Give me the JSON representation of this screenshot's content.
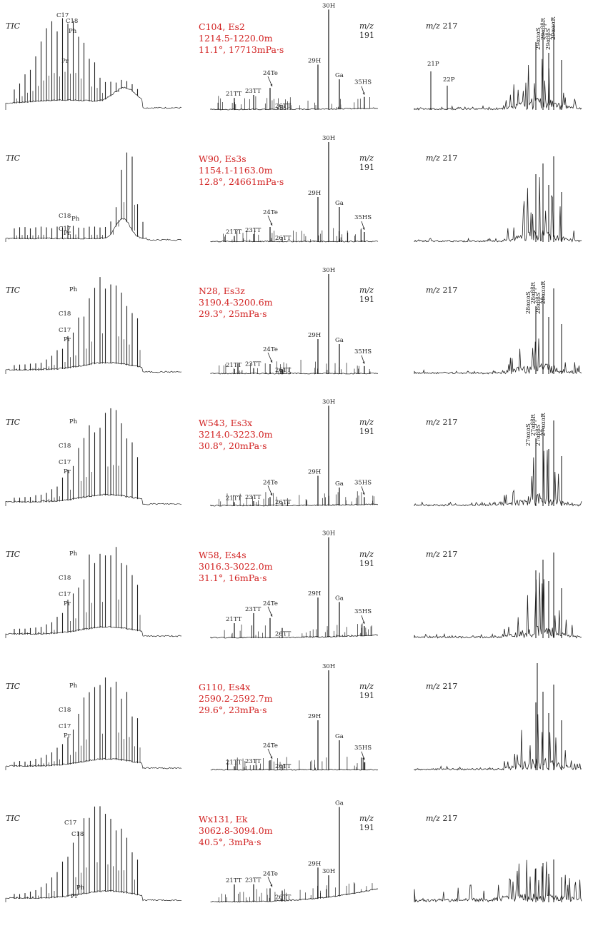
{
  "tic_label": "TIC",
  "mz191": {
    "prefix": "m/z",
    "num": "191"
  },
  "mz217": {
    "prefix": "m/z",
    "num": "217"
  },
  "samples": [
    {
      "name": "C104, Es2",
      "depth": "1214.5-1220.0m",
      "props": "11.1°, 17713mPa·s",
      "tic": {
        "shape": "early_hump",
        "labels": [
          "C17",
          "C18",
          "Ph",
          "Pr"
        ]
      },
      "m191": {
        "peaks": {
          "21TT": 0.12,
          "23TT": 0.15,
          "24Te": 0.22,
          "26TT": 0.05,
          "29H": 0.45,
          "30H": 1.0,
          "Ga": 0.3,
          "35HS": 0.12
        },
        "labels": [
          "21TT",
          "23TT",
          "24Te",
          "26TT",
          "29H",
          "30H",
          "Ga",
          "35HS"
        ],
        "baseline_rise": 0.05
      },
      "m217": {
        "labels": [
          "21P",
          "22P",
          "29αααS",
          "29αββR",
          "29αββS",
          "29αααR"
        ]
      }
    },
    {
      "name": "W90, Es3s",
      "depth": "1154.1-1163.0m",
      "props": "12.8°, 24661mPa·s",
      "tic": {
        "shape": "late_hump",
        "labels": [
          "C18",
          "Ph",
          "C17",
          "Pr"
        ]
      },
      "m191": {
        "peaks": {
          "21TT": 0.06,
          "23TT": 0.08,
          "24Te": 0.15,
          "26TT": 0.05,
          "29H": 0.45,
          "30H": 1.0,
          "Ga": 0.35,
          "35HS": 0.1
        },
        "labels": [
          "21TT",
          "23TT",
          "24Te",
          "26TT",
          "29H",
          "30H",
          "Ga",
          "35HS"
        ],
        "baseline_rise": 0.0
      },
      "m217": {
        "labels": []
      }
    },
    {
      "name": "N28, Es3z",
      "depth": "3190.4-3200.6m",
      "props": "29.3°, 25mPa·s",
      "tic": {
        "shape": "bell",
        "labels": [
          "Ph",
          "C18",
          "C17",
          "Pr"
        ]
      },
      "m191": {
        "peaks": {
          "21TT": 0.05,
          "23TT": 0.06,
          "24Te": 0.1,
          "26TT": 0.05,
          "29H": 0.35,
          "30H": 1.0,
          "Ga": 0.3,
          "35HS": 0.08
        },
        "labels": [
          "21TT",
          "23TT",
          "24Te",
          "26TT",
          "29H",
          "30H",
          "Ga",
          "35HS"
        ],
        "baseline_rise": 0.0
      },
      "m217": {
        "labels": [
          "28αααS",
          "28αββR",
          "28αββS",
          "28αααR"
        ]
      }
    },
    {
      "name": "W543, Es3x",
      "depth": "3214.0-3223.0m",
      "props": "30.8°, 20mPa·s",
      "tic": {
        "shape": "bell",
        "labels": [
          "C18",
          "Ph",
          "C17",
          "Pr"
        ]
      },
      "m191": {
        "peaks": {
          "21TT": 0.04,
          "23TT": 0.05,
          "24Te": 0.09,
          "26TT": 0.04,
          "29H": 0.3,
          "30H": 1.0,
          "Ga": 0.18,
          "35HS": 0.08
        },
        "labels": [
          "21TT",
          "23TT",
          "24Te",
          "26TT",
          "29H",
          "30H",
          "Ga",
          "35HS"
        ],
        "baseline_rise": 0.05
      },
      "m217": {
        "labels": [
          "27αααS",
          "27αββR",
          "27αββS",
          "27αααR"
        ]
      }
    },
    {
      "name": "W58, Es4s",
      "depth": "3016.3-3022.0m",
      "props": "31.1°, 16mPa·s",
      "tic": {
        "shape": "bell",
        "labels": [
          "Ph",
          "C18",
          "C17",
          "Pr"
        ]
      },
      "m191": {
        "peaks": {
          "21TT": 0.15,
          "23TT": 0.25,
          "24Te": 0.2,
          "26TT": 0.1,
          "29H": 0.4,
          "30H": 1.0,
          "Ga": 0.35,
          "35HS": 0.1
        },
        "labels": [
          "21TT",
          "23TT",
          "24Te",
          "26TT",
          "29H",
          "30H",
          "Ga",
          "35HS"
        ],
        "baseline_rise": 0.1
      },
      "m217": {
        "labels": []
      }
    },
    {
      "name": "G110, Es4x",
      "depth": "2590.2-2592.7m",
      "props": "29.6°, 23mPa·s",
      "tic": {
        "shape": "bell",
        "labels": [
          "Ph",
          "C18",
          "C17",
          "Pr"
        ]
      },
      "m191": {
        "peaks": {
          "21TT": 0.04,
          "23TT": 0.05,
          "24Te": 0.1,
          "26TT": 0.05,
          "29H": 0.5,
          "30H": 1.0,
          "Ga": 0.3,
          "35HS": 0.08
        },
        "labels": [
          "21TT",
          "23TT",
          "24Te",
          "26TT",
          "29H",
          "30H",
          "Ga",
          "35HS"
        ],
        "baseline_rise": 0.0
      },
      "m217": {
        "labels": []
      }
    },
    {
      "name": "Wx131, Ek",
      "depth": "3062.8-3094.0m",
      "props": "40.5°, 3mPa·s",
      "tic": {
        "shape": "bell_early",
        "labels": [
          "C17",
          "C18",
          "Ph",
          "Pr"
        ]
      },
      "m191": {
        "peaks": {
          "21TT": 0.2,
          "23TT": 0.2,
          "24Te": 0.15,
          "26TT": 0.12,
          "29H": 0.35,
          "30H": 0.25,
          "Ga": 1.0,
          "35HS": 0.0
        },
        "labels": [
          "21TT",
          "23TT",
          "24Te",
          "26TT",
          "29H",
          "30H",
          "Ga"
        ],
        "baseline_rise": 0.5
      },
      "m217": {
        "labels": []
      }
    }
  ],
  "chart_data": {
    "type": "line",
    "title": "",
    "note": "Seven stacked sample rows; columns are TIC, m/z 191 and m/z 217 chromatograms. Peak heights in m191.peaks are relative to the tallest peak in that trace.",
    "columns": [
      "TIC",
      "m/z 191",
      "m/z 217"
    ]
  }
}
